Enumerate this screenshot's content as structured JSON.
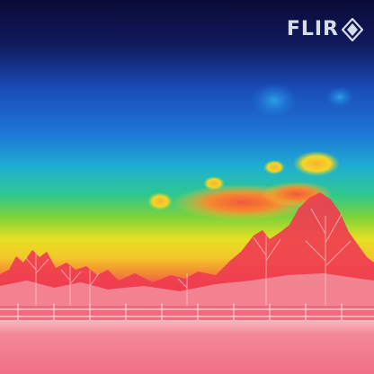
{
  "overlay": {
    "logo_text": "FLIR",
    "logo_icon": "flir-diamond-logo"
  },
  "palette": {
    "sky_top": "#0d0c3f",
    "sky_blue": "#1a5fd0",
    "cyan": "#1fb8d6",
    "green": "#49c74a",
    "yellow": "#f3e021",
    "orange": "#f39a2c",
    "red": "#ef3a4a",
    "pink": "#f07a86",
    "ground_pink": "#f2778a"
  }
}
